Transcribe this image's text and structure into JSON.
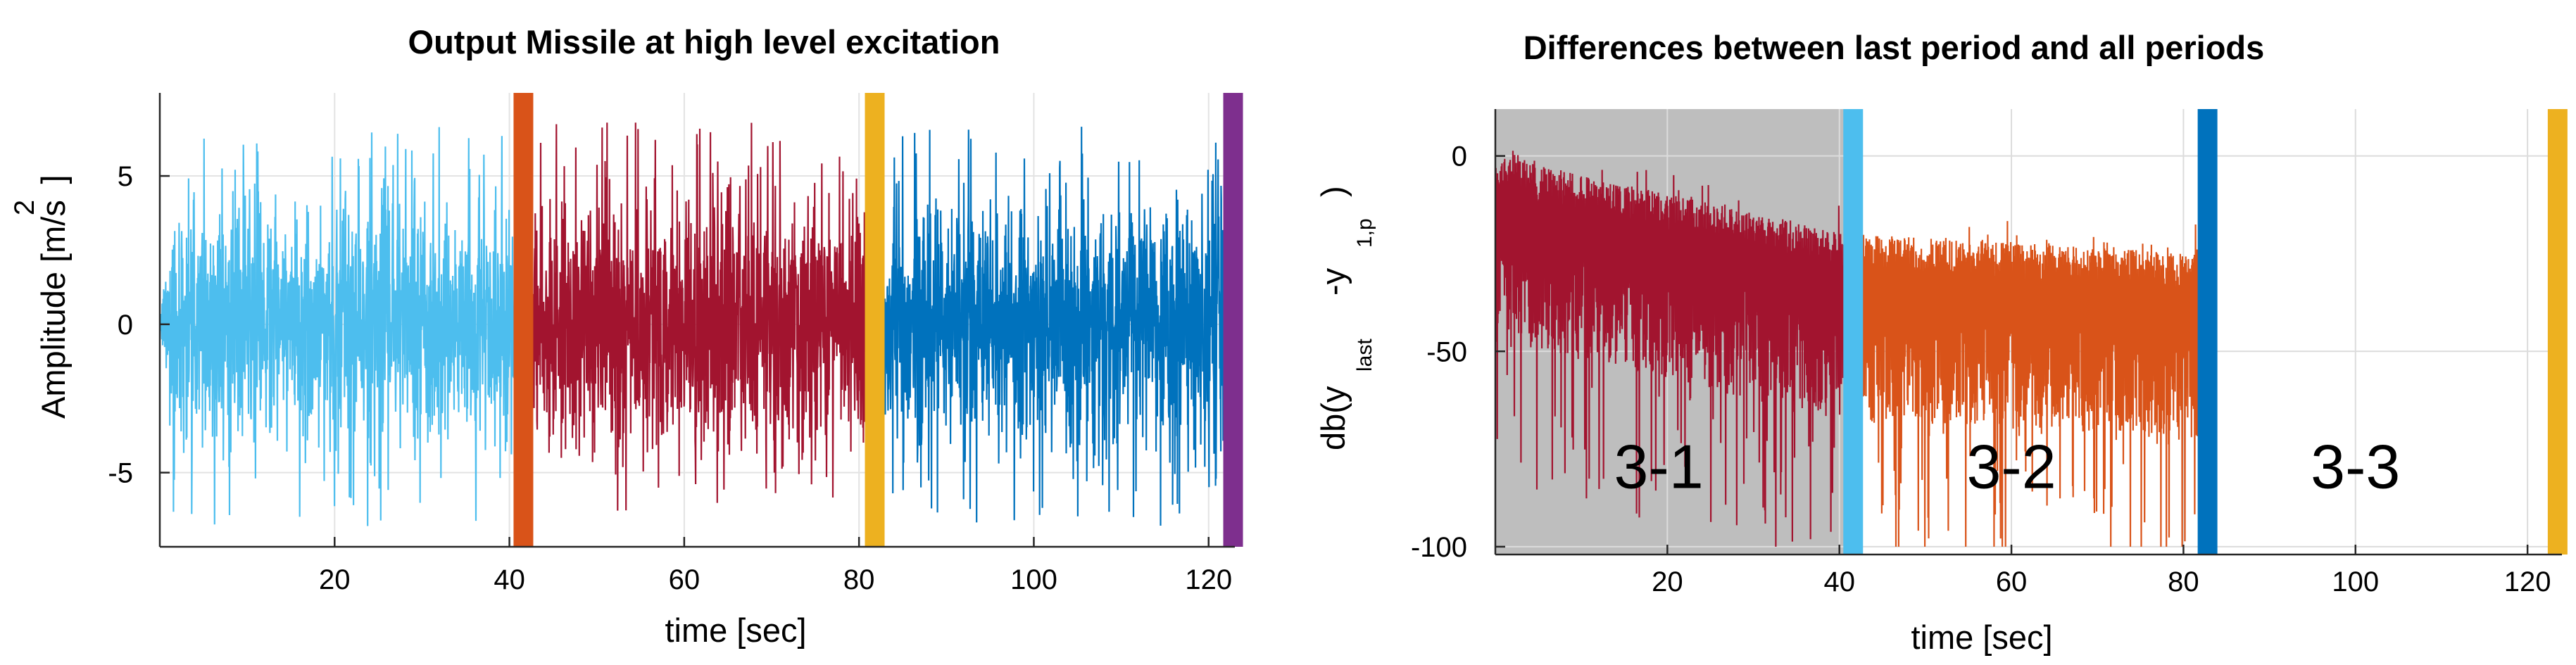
{
  "chart_data": [
    {
      "type": "line",
      "title": "Output Missile at high level excitation",
      "xlabel": "time [sec]",
      "ylabel": "Amplitude [m/s",
      "ylabel_superscript": "2",
      "ylabel_close": "]",
      "xlim": [
        0,
        123
      ],
      "ylim": [
        -7.5,
        7.8
      ],
      "xticks": [
        20,
        40,
        60,
        80,
        100,
        120
      ],
      "yticks": [
        -5,
        0,
        5
      ],
      "grid": true,
      "series": [
        {
          "x_range": [
            0,
            41.2
          ],
          "color": "#4DBEEE",
          "amplitude": 3.0,
          "peak": 6.8,
          "ramp_until": 1.2
        },
        {
          "x_range": [
            42.0,
            81.4
          ],
          "color": "#A2142F",
          "amplitude": 3.0,
          "peak": 6.8
        },
        {
          "x_range": [
            82.2,
            122.4
          ],
          "color": "#0072BD",
          "amplitude": 3.0,
          "peak": 6.8
        }
      ],
      "markers": [
        {
          "x": 41.6,
          "color": "#D95319"
        },
        {
          "x": 81.8,
          "color": "#EDB120"
        },
        {
          "x": 122.8,
          "color": "#7E2F8E"
        }
      ]
    },
    {
      "type": "line",
      "title": "Differences between last period and all periods",
      "xlabel": "time [sec]",
      "ylabel_prefix": "db(y",
      "ylabel_sub1": "last",
      "ylabel_mid": "-y",
      "ylabel_sub2": "1,p",
      "ylabel_close": ")",
      "xlim": [
        0,
        124
      ],
      "ylim": [
        -102,
        12
      ],
      "xticks": [
        20,
        40,
        60,
        80,
        100,
        120
      ],
      "yticks": [
        -100,
        -50,
        0
      ],
      "grid": true,
      "shaded_region": {
        "x_range": [
          0,
          40.8
        ],
        "color": "#BEBEBE"
      },
      "series": [
        {
          "x_range": [
            0,
            41.6
          ],
          "color": "#A2142F",
          "start_level": 0,
          "end_level": -20
        },
        {
          "x_range": [
            41.6,
            82.8
          ],
          "color": "#D95319",
          "start_level": -20,
          "end_level": -25
        }
      ],
      "markers": [
        {
          "x": 41.6,
          "color": "#4DBEEE"
        },
        {
          "x": 82.8,
          "color": "#0072BD"
        },
        {
          "x": 123.5,
          "color": "#EDB120"
        }
      ],
      "annotations": [
        {
          "text": "3-1",
          "x": 19,
          "y": -85
        },
        {
          "text": "3-2",
          "x": 60,
          "y": -85
        },
        {
          "text": "3-3",
          "x": 100,
          "y": -85
        }
      ]
    }
  ]
}
